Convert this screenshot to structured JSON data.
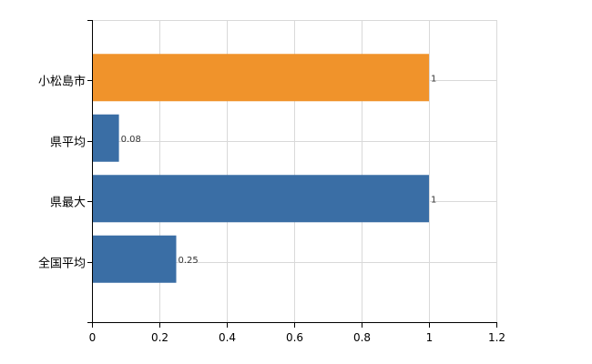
{
  "chart_data": {
    "type": "bar",
    "orientation": "horizontal",
    "categories": [
      "小松島市",
      "県平均",
      "県最大",
      "全国平均"
    ],
    "values": [
      1,
      0.08,
      1,
      0.25
    ],
    "value_labels": [
      "1",
      "0.08",
      "1",
      "0.25"
    ],
    "bar_colors": [
      "#f0932b",
      "#3a6ea5",
      "#3a6ea5",
      "#3a6ea5"
    ],
    "xlim": [
      0,
      1.2
    ],
    "xticks": [
      0,
      0.2,
      0.4,
      0.6,
      0.8,
      1,
      1.2
    ],
    "xtick_labels": [
      "0",
      "0.2",
      "0.4",
      "0.6",
      "0.8",
      "1",
      "1.2"
    ],
    "grid": true,
    "title": "",
    "xlabel": "",
    "ylabel": ""
  }
}
